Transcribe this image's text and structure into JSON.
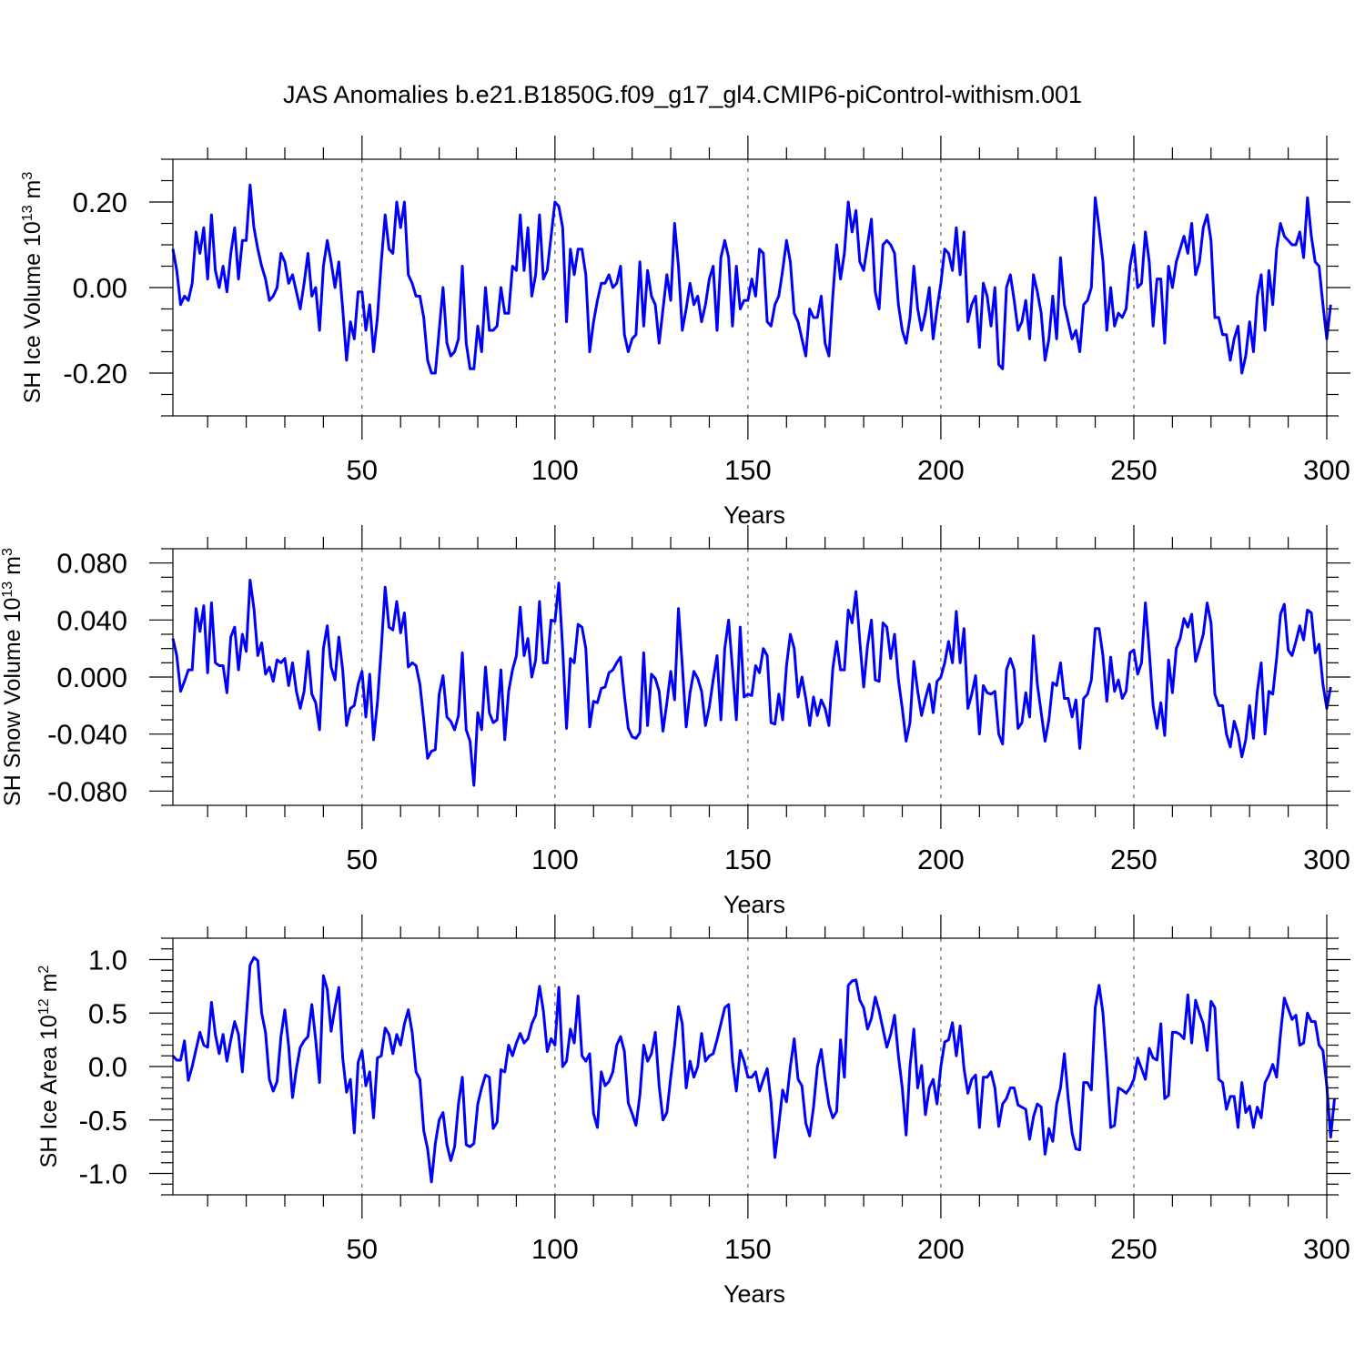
{
  "figure_title": "JAS Anomalies b.e21.B1850G.f09_g17_gl4.CMIP6-piControl-withism.001",
  "colors": {
    "series": "#0000ff",
    "axis": "#000000",
    "grid": "#666666"
  },
  "chart_data": [
    {
      "type": "line",
      "panel": "ice-volume",
      "title": "JAS Anomalies b.e21.B1850G.f09_g17_gl4.CMIP6-piControl-withism.001",
      "xlabel": "Years",
      "ylabel": {
        "main": "SH Ice Volume 10",
        "exp": "13",
        "unit": " m",
        "unit_exp": "3"
      },
      "xlim": [
        1,
        300
      ],
      "ylim": [
        -0.3,
        0.3
      ],
      "xticks": [
        50,
        100,
        150,
        200,
        250,
        300
      ],
      "xtick_labels": [
        "50",
        "100",
        "150",
        "200",
        "250",
        "300"
      ],
      "yticks": [
        -0.2,
        0.0,
        0.2
      ],
      "ytick_labels": [
        "-0.20",
        "0.00",
        "0.20"
      ],
      "grid": "vertical dashed at major x ticks",
      "series": [
        {
          "name": "SH Ice Volume",
          "x_start": 1,
          "x_step": 1,
          "values": [
            0.09,
            0.04,
            -0.04,
            -0.02,
            -0.03,
            0.01,
            0.13,
            0.08,
            0.14,
            0.02,
            0.17,
            0.04,
            0.0,
            0.05,
            -0.01,
            0.08,
            0.14,
            0.02,
            0.11,
            0.11,
            0.24,
            0.14,
            0.09,
            0.05,
            0.02,
            -0.03,
            -0.02,
            0.0,
            0.08,
            0.06,
            0.01,
            0.03,
            -0.01,
            -0.05,
            0.01,
            0.08,
            -0.02,
            0.0,
            -0.1,
            0.05,
            0.11,
            0.06,
            0.0,
            0.06,
            -0.05,
            -0.17,
            -0.08,
            -0.12,
            -0.01,
            -0.01,
            -0.1,
            -0.04,
            -0.15,
            -0.07,
            0.06,
            0.17,
            0.09,
            0.08,
            0.2,
            0.14,
            0.2,
            0.03,
            0.01,
            -0.02,
            -0.02,
            -0.07,
            -0.17,
            -0.2,
            -0.2,
            -0.1,
            0.0,
            -0.13,
            -0.16,
            -0.15,
            -0.12,
            0.05,
            -0.13,
            -0.19,
            -0.19,
            -0.09,
            -0.15,
            0.0,
            -0.1,
            -0.1,
            -0.09,
            0.0,
            -0.06,
            -0.06,
            0.05,
            0.04,
            0.17,
            0.04,
            0.14,
            -0.02,
            0.03,
            0.17,
            0.02,
            0.04,
            0.12,
            0.2,
            0.19,
            0.14,
            -0.08,
            0.09,
            0.03,
            0.09,
            0.09,
            0.03,
            -0.15,
            -0.08,
            -0.03,
            0.01,
            0.01,
            0.03,
            0.0,
            0.01,
            0.05,
            -0.11,
            -0.15,
            -0.12,
            -0.11,
            0.06,
            -0.09,
            0.04,
            -0.02,
            -0.04,
            -0.13,
            -0.05,
            0.03,
            -0.03,
            0.15,
            0.05,
            -0.1,
            -0.05,
            0.01,
            -0.04,
            -0.02,
            -0.08,
            -0.04,
            0.02,
            0.05,
            -0.1,
            0.07,
            0.11,
            0.07,
            -0.09,
            0.05,
            -0.05,
            -0.03,
            -0.03,
            0.02,
            -0.02,
            0.09,
            0.08,
            -0.08,
            -0.09,
            -0.04,
            -0.02,
            0.04,
            0.11,
            0.06,
            -0.06,
            -0.08,
            -0.12,
            -0.16,
            -0.05,
            -0.07,
            -0.07,
            -0.02,
            -0.13,
            -0.16,
            -0.02,
            0.1,
            0.02,
            0.08,
            0.2,
            0.13,
            0.18,
            0.06,
            0.04,
            0.1,
            0.16,
            -0.01,
            -0.05,
            0.1,
            0.11,
            0.1,
            0.08,
            -0.04,
            -0.1,
            -0.13,
            -0.07,
            0.05,
            -0.05,
            -0.1,
            -0.06,
            0.0,
            -0.12,
            -0.05,
            0.01,
            0.09,
            0.08,
            0.04,
            0.14,
            0.03,
            0.13,
            -0.08,
            -0.04,
            -0.02,
            -0.14,
            0.01,
            -0.02,
            -0.09,
            0.0,
            -0.18,
            -0.19,
            0.0,
            0.03,
            -0.03,
            -0.1,
            -0.08,
            -0.03,
            -0.12,
            0.03,
            -0.01,
            -0.06,
            -0.17,
            -0.12,
            -0.02,
            -0.12,
            0.07,
            -0.04,
            -0.08,
            -0.12,
            -0.1,
            -0.15,
            -0.04,
            -0.03,
            0.0,
            0.21,
            0.14,
            0.06,
            -0.1,
            0.0,
            -0.09,
            -0.06,
            -0.07,
            -0.05,
            0.05,
            0.1,
            0.0,
            0.01,
            0.13,
            0.06,
            -0.09,
            0.02,
            0.02,
            -0.13,
            0.05,
            0.0,
            0.06,
            0.09,
            0.12,
            0.08,
            0.15,
            0.03,
            0.06,
            0.14,
            0.17,
            0.11,
            -0.07,
            -0.07,
            -0.11,
            -0.11,
            -0.17,
            -0.12,
            -0.09,
            -0.2,
            -0.16,
            -0.08,
            -0.15,
            -0.02,
            0.03,
            -0.1,
            0.04,
            -0.04,
            0.09,
            0.15,
            0.12,
            0.11,
            0.1,
            0.1,
            0.13,
            0.07,
            0.21,
            0.12,
            0.06,
            0.05,
            -0.04,
            -0.12,
            -0.04
          ]
        }
      ]
    },
    {
      "type": "line",
      "panel": "snow-volume",
      "xlabel": "Years",
      "ylabel": {
        "main": "SH Snow Volume 10",
        "exp": "13",
        "unit": " m",
        "unit_exp": "3"
      },
      "xlim": [
        1,
        300
      ],
      "ylim": [
        -0.09,
        0.09
      ],
      "xticks": [
        50,
        100,
        150,
        200,
        250,
        300
      ],
      "xtick_labels": [
        "50",
        "100",
        "150",
        "200",
        "250",
        "300"
      ],
      "yticks": [
        -0.08,
        -0.04,
        0.0,
        0.04,
        0.08
      ],
      "ytick_labels": [
        "-0.080",
        "-0.040",
        "0.000",
        "0.040",
        "0.080"
      ],
      "grid": "vertical dashed at major x ticks",
      "series": [
        {
          "name": "SH Snow Volume",
          "x_start": 1,
          "x_step": 1,
          "values": [
            0.027,
            0.015,
            -0.01,
            -0.003,
            0.005,
            0.005,
            0.048,
            0.032,
            0.05,
            0.003,
            0.052,
            0.01,
            0.008,
            0.008,
            -0.011,
            0.028,
            0.035,
            0.005,
            0.03,
            0.018,
            0.068,
            0.048,
            0.015,
            0.024,
            0.002,
            0.007,
            -0.003,
            0.012,
            0.01,
            0.013,
            -0.006,
            0.01,
            -0.01,
            -0.022,
            -0.01,
            0.018,
            -0.012,
            -0.018,
            -0.037,
            0.02,
            0.036,
            0.007,
            -0.002,
            0.028,
            0.005,
            -0.034,
            -0.022,
            -0.02,
            -0.005,
            0.004,
            -0.028,
            0.002,
            -0.044,
            -0.018,
            0.02,
            0.063,
            0.035,
            0.033,
            0.053,
            0.031,
            0.045,
            0.007,
            0.01,
            0.008,
            -0.005,
            -0.03,
            -0.057,
            -0.052,
            -0.051,
            -0.012,
            0.001,
            -0.028,
            -0.031,
            -0.037,
            -0.027,
            0.017,
            -0.037,
            -0.045,
            -0.076,
            -0.025,
            -0.037,
            0.007,
            -0.025,
            -0.032,
            -0.03,
            0.005,
            -0.044,
            -0.01,
            0.005,
            0.015,
            0.049,
            0.015,
            0.027,
            0.0,
            0.012,
            0.053,
            0.01,
            0.01,
            0.04,
            0.039,
            0.066,
            0.02,
            -0.036,
            0.013,
            0.01,
            0.037,
            0.035,
            0.02,
            -0.035,
            -0.017,
            -0.018,
            -0.008,
            -0.007,
            0.003,
            0.005,
            0.01,
            0.014,
            -0.013,
            -0.036,
            -0.042,
            -0.043,
            -0.039,
            0.017,
            -0.034,
            0.002,
            -0.001,
            -0.01,
            -0.038,
            -0.018,
            0.004,
            -0.016,
            0.048,
            0.008,
            -0.035,
            -0.011,
            0.004,
            -0.001,
            -0.01,
            -0.034,
            -0.021,
            -0.002,
            0.015,
            -0.03,
            0.02,
            0.04,
            0.006,
            -0.03,
            0.035,
            -0.014,
            -0.012,
            -0.013,
            0.008,
            0.003,
            0.02,
            0.015,
            -0.032,
            -0.033,
            -0.012,
            -0.03,
            0.008,
            0.03,
            0.02,
            -0.014,
            0.0,
            -0.015,
            -0.034,
            -0.014,
            -0.027,
            -0.016,
            -0.022,
            -0.034,
            0.006,
            0.025,
            0.005,
            0.005,
            0.047,
            0.038,
            0.06,
            0.025,
            -0.007,
            0.022,
            0.04,
            -0.002,
            -0.003,
            0.038,
            0.035,
            0.013,
            0.03,
            -0.002,
            -0.022,
            -0.045,
            -0.032,
            0.011,
            -0.01,
            -0.027,
            -0.015,
            -0.005,
            -0.025,
            -0.003,
            0.0,
            0.01,
            0.025,
            0.01,
            0.046,
            0.01,
            0.034,
            -0.022,
            -0.012,
            0.001,
            -0.04,
            -0.006,
            -0.011,
            -0.012,
            -0.01,
            -0.04,
            -0.047,
            0.005,
            0.013,
            0.005,
            -0.036,
            -0.032,
            -0.011,
            -0.028,
            0.029,
            -0.005,
            -0.025,
            -0.045,
            -0.03,
            -0.004,
            -0.006,
            0.01,
            -0.015,
            -0.015,
            -0.028,
            -0.016,
            -0.05,
            -0.015,
            -0.012,
            -0.002,
            0.034,
            0.034,
            0.015,
            -0.017,
            0.014,
            -0.01,
            -0.002,
            -0.015,
            -0.01,
            0.017,
            0.019,
            0.002,
            0.01,
            0.052,
            0.018,
            -0.02,
            -0.036,
            -0.018,
            -0.041,
            0.012,
            -0.011,
            0.02,
            0.027,
            0.041,
            0.035,
            0.044,
            0.011,
            0.02,
            0.03,
            0.052,
            0.038,
            -0.012,
            -0.02,
            -0.02,
            -0.04,
            -0.049,
            -0.031,
            -0.04,
            -0.056,
            -0.044,
            -0.02,
            -0.043,
            -0.01,
            0.01,
            -0.04,
            -0.01,
            -0.012,
            0.013,
            0.044,
            0.051,
            0.019,
            0.015,
            0.025,
            0.036,
            0.026,
            0.047,
            0.045,
            0.017,
            0.023,
            -0.005,
            -0.022,
            -0.007
          ]
        }
      ]
    },
    {
      "type": "line",
      "panel": "ice-area",
      "xlabel": "Years",
      "ylabel": {
        "main": "SH Ice Area 10",
        "exp": "12",
        "unit": " m",
        "unit_exp": "2"
      },
      "xlim": [
        1,
        300
      ],
      "ylim": [
        -1.2,
        1.2
      ],
      "xticks": [
        50,
        100,
        150,
        200,
        250,
        300
      ],
      "xtick_labels": [
        "50",
        "100",
        "150",
        "200",
        "250",
        "300"
      ],
      "yticks": [
        -1.0,
        -0.5,
        0.0,
        0.5,
        1.0
      ],
      "ytick_labels": [
        "-1.0",
        "-0.5",
        "0.0",
        "0.5",
        "1.0"
      ],
      "grid": "vertical dashed at major x ticks",
      "series": [
        {
          "name": "SH Ice Area",
          "x_start": 1,
          "x_step": 1,
          "values": [
            0.1,
            0.06,
            0.06,
            0.24,
            -0.13,
            0.0,
            0.16,
            0.32,
            0.2,
            0.18,
            0.6,
            0.3,
            0.12,
            0.3,
            0.05,
            0.25,
            0.42,
            0.3,
            -0.05,
            0.45,
            0.95,
            1.02,
            0.99,
            0.5,
            0.32,
            -0.12,
            -0.23,
            -0.14,
            0.28,
            0.53,
            0.19,
            -0.29,
            -0.02,
            0.18,
            0.24,
            0.28,
            0.58,
            0.25,
            -0.15,
            0.85,
            0.72,
            0.33,
            0.55,
            0.74,
            0.08,
            -0.24,
            -0.12,
            -0.62,
            0.04,
            0.15,
            -0.18,
            -0.05,
            -0.48,
            0.08,
            0.1,
            0.36,
            0.3,
            0.12,
            0.3,
            0.2,
            0.4,
            0.53,
            0.32,
            -0.05,
            -0.12,
            -0.6,
            -0.77,
            -1.08,
            -0.72,
            -0.5,
            -0.43,
            -0.73,
            -0.88,
            -0.75,
            -0.35,
            -0.1,
            -0.73,
            -0.75,
            -0.72,
            -0.35,
            -0.2,
            -0.08,
            -0.1,
            -0.58,
            -0.52,
            -0.03,
            -0.05,
            0.2,
            0.1,
            0.22,
            0.31,
            0.22,
            0.26,
            0.4,
            0.48,
            0.75,
            0.52,
            0.14,
            0.26,
            0.2,
            0.74,
            0.0,
            0.05,
            0.35,
            0.22,
            0.66,
            0.1,
            0.05,
            0.12,
            -0.44,
            -0.57,
            -0.05,
            -0.18,
            -0.14,
            -0.05,
            0.2,
            0.28,
            0.14,
            -0.34,
            -0.44,
            -0.55,
            -0.27,
            0.2,
            0.05,
            0.12,
            0.32,
            -0.18,
            -0.5,
            -0.43,
            -0.1,
            0.2,
            0.56,
            0.4,
            -0.2,
            0.05,
            -0.1,
            0.0,
            0.31,
            0.05,
            0.1,
            0.12,
            0.25,
            0.4,
            0.55,
            0.58,
            0.05,
            -0.23,
            0.15,
            0.05,
            -0.1,
            -0.1,
            -0.05,
            -0.23,
            -0.12,
            -0.02,
            -0.33,
            -0.85,
            -0.55,
            -0.22,
            -0.33,
            0.0,
            0.26,
            -0.12,
            -0.18,
            -0.53,
            -0.65,
            -0.38,
            0.0,
            0.16,
            -0.12,
            -0.36,
            -0.48,
            -0.42,
            0.25,
            -0.1,
            0.76,
            0.8,
            0.81,
            0.62,
            0.55,
            0.35,
            0.45,
            0.65,
            0.52,
            0.35,
            0.18,
            0.3,
            0.48,
            0.1,
            -0.2,
            -0.64,
            0.0,
            0.35,
            -0.2,
            0.01,
            -0.45,
            -0.2,
            -0.12,
            -0.35,
            0.0,
            0.23,
            0.25,
            0.41,
            0.1,
            0.38,
            -0.02,
            -0.25,
            -0.12,
            -0.08,
            -0.57,
            -0.1,
            -0.1,
            -0.05,
            -0.2,
            -0.56,
            -0.35,
            -0.3,
            -0.2,
            -0.2,
            -0.36,
            -0.38,
            -0.4,
            -0.68,
            -0.47,
            -0.35,
            -0.38,
            -0.82,
            -0.58,
            -0.7,
            -0.35,
            -0.2,
            0.12,
            -0.3,
            -0.62,
            -0.77,
            -0.78,
            -0.15,
            -0.15,
            -0.22,
            0.55,
            0.76,
            0.5,
            0.0,
            -0.57,
            -0.55,
            -0.2,
            -0.22,
            -0.25,
            -0.2,
            -0.12,
            0.08,
            -0.02,
            -0.12,
            0.17,
            0.08,
            0.06,
            0.4,
            -0.3,
            -0.27,
            0.32,
            0.32,
            0.3,
            0.26,
            0.67,
            0.22,
            0.62,
            0.5,
            0.4,
            0.15,
            0.61,
            0.55,
            -0.12,
            -0.15,
            -0.4,
            -0.28,
            -0.28,
            -0.57,
            -0.15,
            -0.43,
            -0.37,
            -0.57,
            -0.38,
            -0.48,
            -0.15,
            -0.08,
            0.02,
            -0.1,
            0.3,
            0.64,
            0.54,
            0.44,
            0.48,
            0.2,
            0.22,
            0.5,
            0.42,
            0.42,
            0.2,
            0.15,
            -0.18,
            -0.66,
            -0.3
          ]
        }
      ]
    }
  ]
}
